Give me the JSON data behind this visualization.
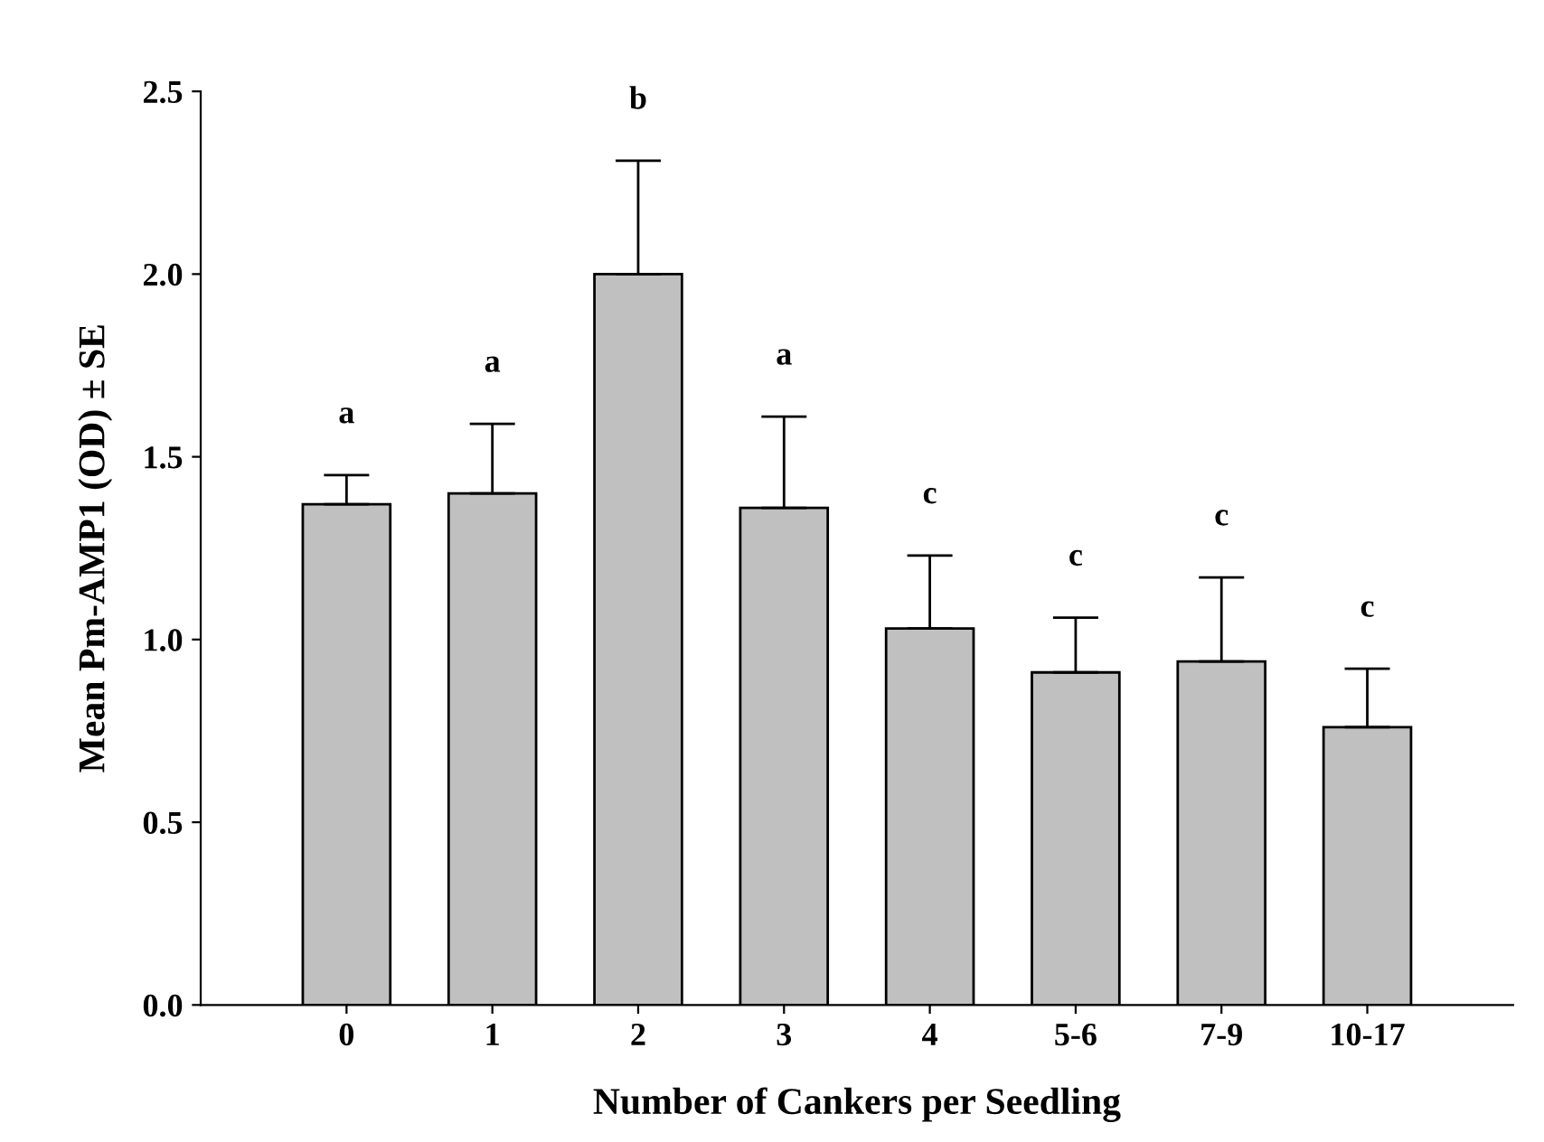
{
  "chart_data": {
    "type": "bar",
    "xlabel": "Number of Cankers per Seedling",
    "ylabel": "Mean Pm-AMP1 (OD) ± SE",
    "categories": [
      "0",
      "1",
      "2",
      "3",
      "4",
      "5-6",
      "7-9",
      "10-17"
    ],
    "values": [
      1.37,
      1.4,
      2.0,
      1.36,
      1.03,
      0.91,
      0.94,
      0.76
    ],
    "errors": [
      [
        1.37,
        1.45
      ],
      [
        1.4,
        1.59
      ],
      [
        2.0,
        2.31
      ],
      [
        1.36,
        1.61
      ],
      [
        1.03,
        1.23
      ],
      [
        0.91,
        1.06
      ],
      [
        0.94,
        1.17
      ],
      [
        0.76,
        0.92
      ]
    ],
    "color": "#c0c0c0",
    "ylim": [
      0,
      2.5
    ],
    "yticks": [
      {
        "value": 0,
        "label": "0.0"
      },
      0.5,
      {
        "value": 1,
        "label": "1.0"
      },
      1.5,
      {
        "value": 2,
        "label": "2.0"
      },
      2.5
    ],
    "annotations": [
      "a",
      "a",
      "b",
      "a",
      "c",
      "c",
      "c",
      "c"
    ]
  }
}
